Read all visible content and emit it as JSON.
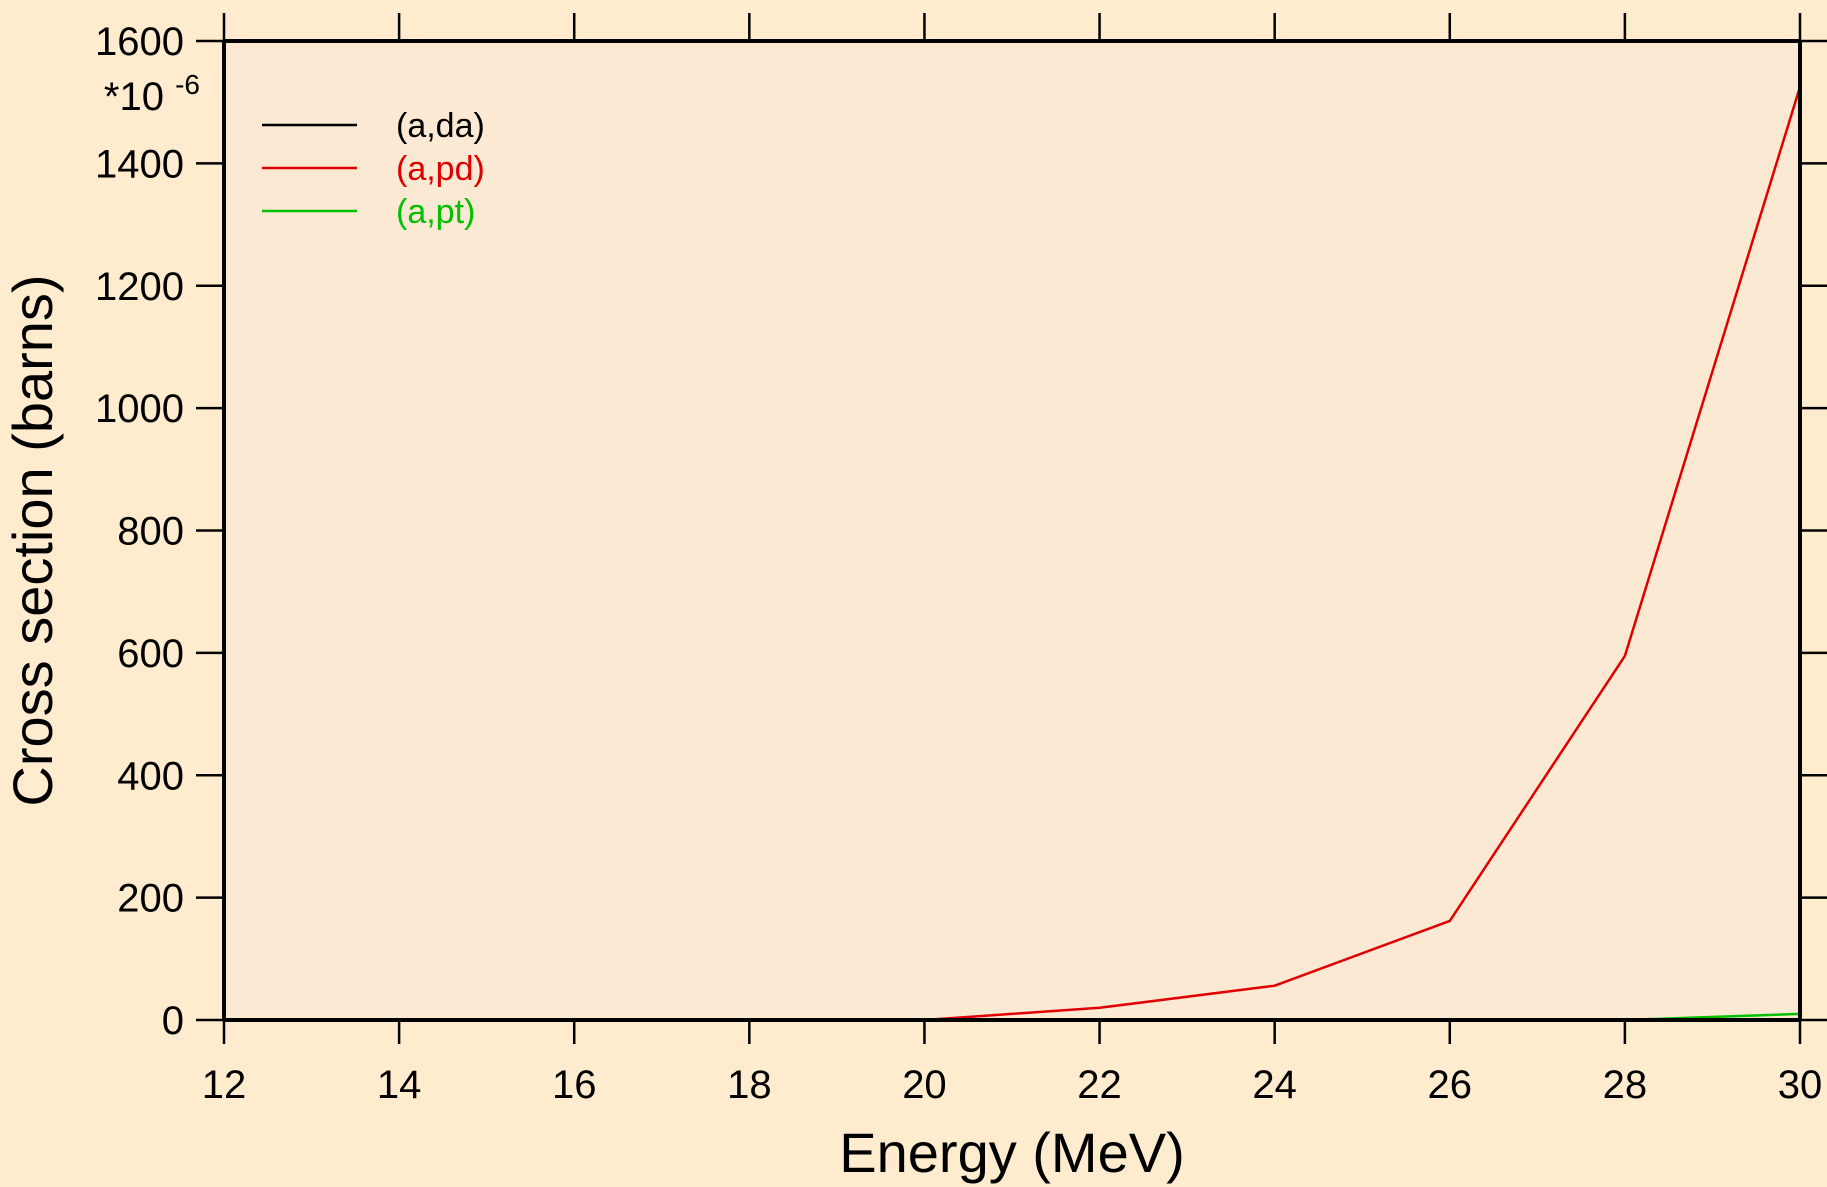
{
  "colors": {
    "page_background": "#ffebcd",
    "plot_background": "#fbe9d3",
    "axis": "#000000"
  },
  "chart_data": {
    "type": "line",
    "title": "",
    "xlabel": "Energy (MeV)",
    "ylabel": "Cross section (barns)",
    "y_multiplier": {
      "base": "*10",
      "exponent": "-6"
    },
    "xlim": [
      12,
      30
    ],
    "ylim": [
      0,
      1600
    ],
    "x_ticks": [
      "12",
      "14",
      "16",
      "18",
      "20",
      "22",
      "24",
      "26",
      "28",
      "30"
    ],
    "y_ticks": [
      "0",
      "200",
      "400",
      "600",
      "800",
      "1000",
      "1200",
      "1400",
      "1600"
    ],
    "grid": false,
    "legend_position": "top-left",
    "x": [
      12,
      14,
      16,
      18,
      20,
      22,
      24,
      26,
      28,
      30
    ],
    "series": [
      {
        "name": "(a,da)",
        "color": "#000000",
        "values": [
          0,
          0,
          0,
          0,
          0,
          0,
          0,
          0,
          0,
          0
        ]
      },
      {
        "name": "(a,pd)",
        "color": "#e00000",
        "values": [
          0,
          0,
          0,
          0,
          0,
          20,
          56,
          162,
          595,
          1525
        ]
      },
      {
        "name": "(a,pt)",
        "color": "#00c000",
        "values": [
          0,
          0,
          0,
          0,
          0,
          0,
          0,
          0,
          0,
          10
        ]
      }
    ]
  }
}
